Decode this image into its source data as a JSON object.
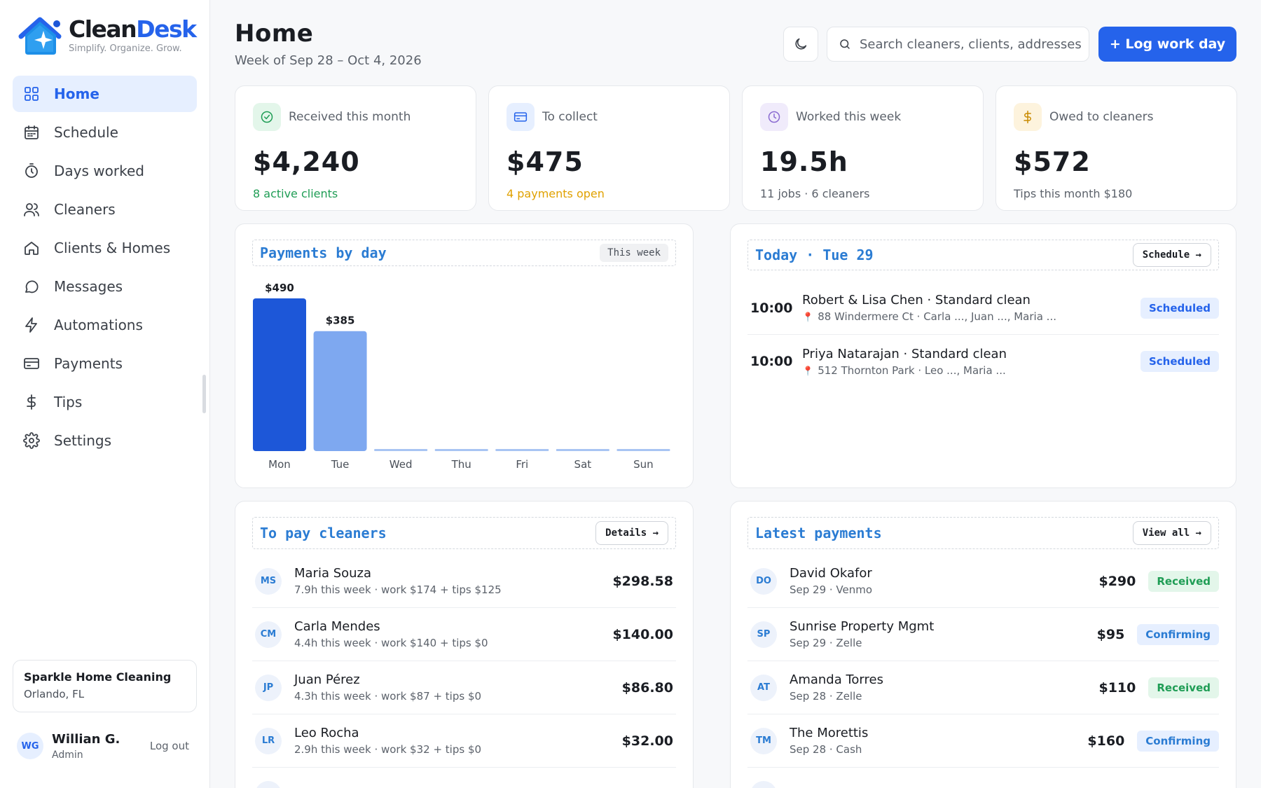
{
  "brand": {
    "name_a": "Clean",
    "name_b": "Desk",
    "tagline": "Simplify. Organize. Grow."
  },
  "nav": [
    {
      "label": "Home",
      "icon": "grid-icon",
      "active": true
    },
    {
      "label": "Schedule",
      "icon": "calendar-icon"
    },
    {
      "label": "Days worked",
      "icon": "stopwatch-icon"
    },
    {
      "label": "Cleaners",
      "icon": "users-icon"
    },
    {
      "label": "Clients & Homes",
      "icon": "house-icon"
    },
    {
      "label": "Messages",
      "icon": "chat-icon"
    },
    {
      "label": "Automations",
      "icon": "bolt-icon"
    },
    {
      "label": "Payments",
      "icon": "card-icon"
    },
    {
      "label": "Tips",
      "icon": "dollar-icon"
    },
    {
      "label": "Settings",
      "icon": "gear-icon"
    }
  ],
  "business": {
    "name": "Sparkle Home Cleaning",
    "location": "Orlando, FL"
  },
  "user": {
    "initials": "WG",
    "name": "Willian G.",
    "role": "Admin",
    "logout": "Log out"
  },
  "header": {
    "title": "Home",
    "subtitle": "Week of Sep 28 – Oct 4, 2026",
    "search_placeholder": "Search cleaners, clients, addresses",
    "primary_action": "+ Log work day"
  },
  "stats": [
    {
      "label": "Received this month",
      "value": "$4,240",
      "note": "8 active clients",
      "icon": "check-circle-icon",
      "tint": "#e3f6ea",
      "ink": "#1f9d55",
      "note_color": "#1f9d55"
    },
    {
      "label": "To collect",
      "value": "$475",
      "note": "4 payments open",
      "icon": "card-icon",
      "tint": "#e6efff",
      "ink": "#2563eb",
      "note_color": "#e0a100"
    },
    {
      "label": "Worked this week",
      "value": "19.5h",
      "note": "11 jobs · 6 cleaners",
      "icon": "clock-icon",
      "tint": "#f0ebfb",
      "ink": "#8b6bd1",
      "note_color": "#5c626b"
    },
    {
      "label": "Owed to cleaners",
      "value": "$572",
      "note": "Tips this month $180",
      "icon": "dollar-icon",
      "tint": "#fdf3dd",
      "ink": "#c98a00",
      "note_color": "#5c626b"
    }
  ],
  "payments_panel": {
    "title": "Payments by day",
    "badge": "This week"
  },
  "chart_data": {
    "type": "bar",
    "categories": [
      "Mon",
      "Tue",
      "Wed",
      "Thu",
      "Fri",
      "Sat",
      "Sun"
    ],
    "values": [
      490,
      385,
      0,
      0,
      0,
      0,
      0
    ],
    "data_labels": [
      "$490",
      "$385",
      "",
      "",
      "",
      "",
      ""
    ],
    "colors": [
      "#1d57d8",
      "#7ea8f0",
      "#a8c4f3",
      "#a8c4f3",
      "#a8c4f3",
      "#a8c4f3",
      "#a8c4f3"
    ],
    "ylim": [
      0,
      490
    ]
  },
  "today": {
    "title": "Today · Tue 29",
    "action": "Schedule →",
    "jobs": [
      {
        "time": "10:00",
        "title": "Robert & Lisa Chen · Standard clean",
        "sub": "88 Windermere Ct · Carla ..., Juan ..., Maria ...",
        "status": "Scheduled"
      },
      {
        "time": "10:00",
        "title": "Priya Natarajan · Standard clean",
        "sub": "512 Thornton Park · Leo ..., Maria ...",
        "status": "Scheduled"
      }
    ]
  },
  "to_pay": {
    "title": "To pay cleaners",
    "action": "Details →",
    "rows": [
      {
        "initials": "MS",
        "name": "Maria Souza",
        "sub": "7.9h this week · work $174 + tips $125",
        "amount": "$298.58"
      },
      {
        "initials": "CM",
        "name": "Carla Mendes",
        "sub": "4.4h this week · work $140 + tips $0",
        "amount": "$140.00"
      },
      {
        "initials": "JP",
        "name": "Juan Pérez",
        "sub": "4.3h this week · work $87 + tips $0",
        "amount": "$86.80"
      },
      {
        "initials": "LR",
        "name": "Leo Rocha",
        "sub": "2.9h this week · work $32 + tips $0",
        "amount": "$32.00"
      }
    ]
  },
  "latest": {
    "title": "Latest payments",
    "action": "View all →",
    "rows": [
      {
        "initials": "DO",
        "name": "David Okafor",
        "sub": "Sep 29 · Venmo",
        "amount": "$290",
        "status": "Received"
      },
      {
        "initials": "SP",
        "name": "Sunrise Property Mgmt",
        "sub": "Sep 29 · Zelle",
        "amount": "$95",
        "status": "Confirming"
      },
      {
        "initials": "AT",
        "name": "Amanda Torres",
        "sub": "Sep 28 · Zelle",
        "amount": "$110",
        "status": "Received"
      },
      {
        "initials": "TM",
        "name": "The Morettis",
        "sub": "Sep 28 · Cash",
        "amount": "$160",
        "status": "Confirming"
      }
    ]
  }
}
